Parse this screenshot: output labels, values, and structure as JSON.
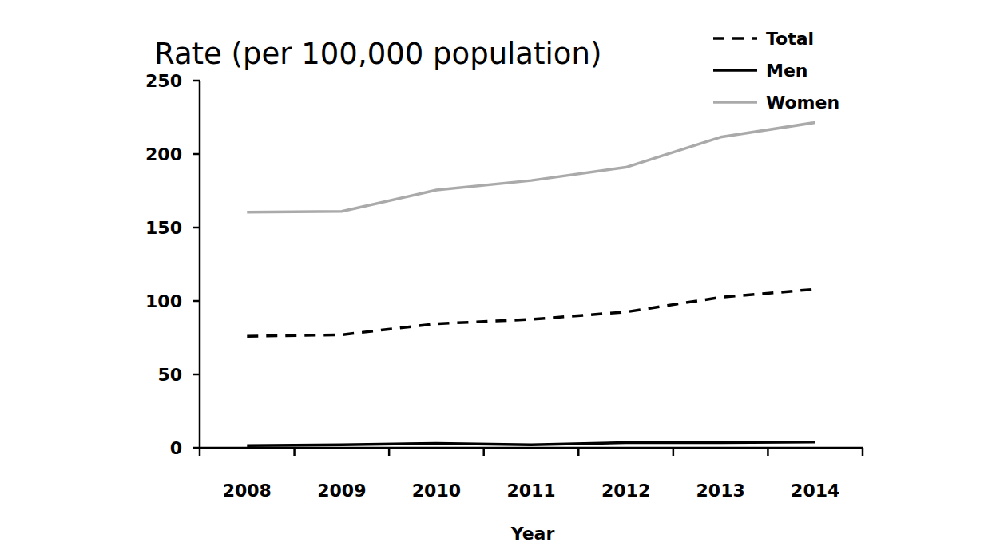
{
  "chart_data": {
    "type": "line",
    "title": "Rate (per 100,000 population)",
    "x_label": "Year",
    "categories": [
      "2008",
      "2009",
      "2010",
      "2011",
      "2012",
      "2013",
      "2014"
    ],
    "series": [
      {
        "name": "Total",
        "color": "#000000",
        "line_style": "dashed",
        "values": [
          76,
          77,
          84.5,
          87.5,
          92.5,
          102.5,
          108
        ]
      },
      {
        "name": "Men",
        "color": "#000000",
        "line_style": "solid",
        "values": [
          1.5,
          2,
          3,
          2,
          3.5,
          3.5,
          4
        ]
      },
      {
        "name": "Women",
        "color": "#aaaaaa",
        "line_style": "solid",
        "values": [
          160.5,
          161,
          175.5,
          182,
          191,
          211.5,
          221.5
        ]
      }
    ],
    "ylim": [
      0,
      250
    ],
    "yticks": [
      0,
      50,
      100,
      150,
      200,
      250
    ],
    "grid": false,
    "legend": "top-right"
  }
}
